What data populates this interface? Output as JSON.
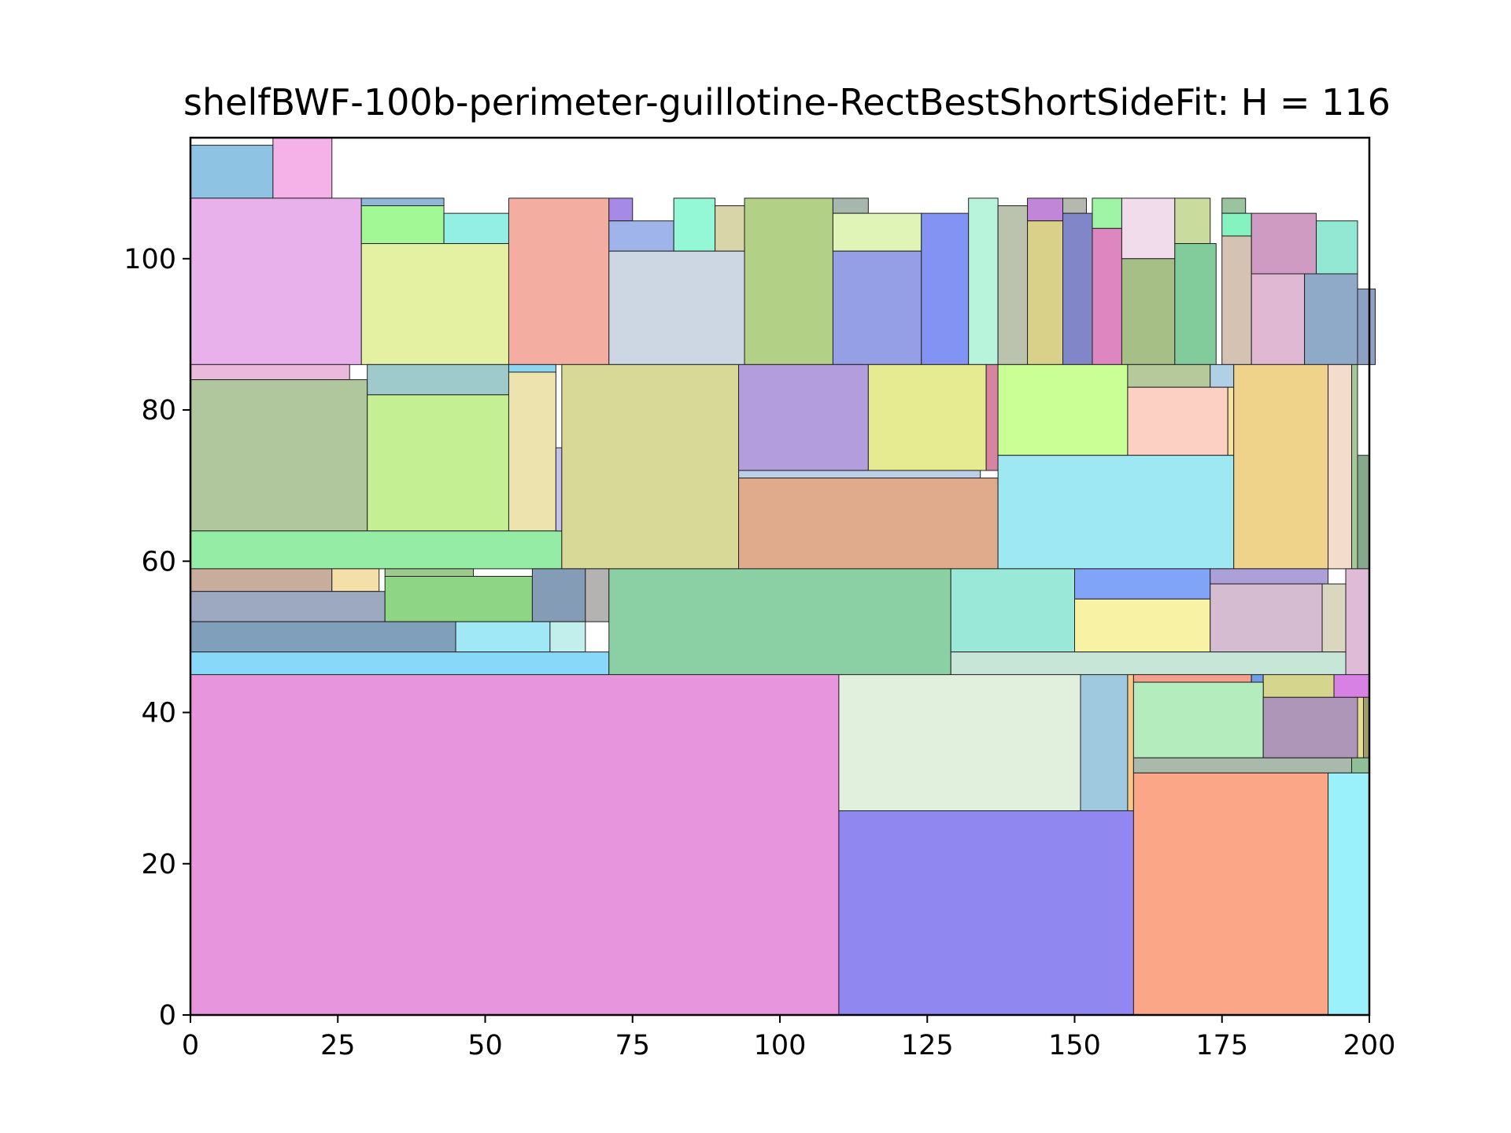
{
  "chart_data": {
    "type": "rectangle-packing",
    "title": "shelfBWF-100b-perimeter-guillotine-RectBestShortSideFit: H = 116",
    "xlabel": "",
    "ylabel": "",
    "xlim": [
      0,
      200
    ],
    "ylim": [
      0,
      116
    ],
    "xticks": [
      0,
      25,
      50,
      75,
      100,
      125,
      150,
      175,
      200
    ],
    "yticks": [
      0,
      20,
      40,
      60,
      80,
      100
    ],
    "grid": false,
    "legend": "none",
    "rectangles": [
      {
        "x": 0,
        "y": 108,
        "w": 14,
        "h": 7,
        "color": "#8fc3e4"
      },
      {
        "x": 14,
        "y": 108,
        "w": 10,
        "h": 8,
        "color": "#f5b2e8"
      },
      {
        "x": 0,
        "y": 86,
        "w": 29,
        "h": 22,
        "color": "#e9b1ec"
      },
      {
        "x": 29,
        "y": 107,
        "w": 14,
        "h": 1,
        "color": "#8fb8d6"
      },
      {
        "x": 29,
        "y": 102,
        "w": 14,
        "h": 5,
        "color": "#a2f895"
      },
      {
        "x": 43,
        "y": 102,
        "w": 11,
        "h": 4,
        "color": "#93efe3"
      },
      {
        "x": 29,
        "y": 86,
        "w": 25,
        "h": 16,
        "color": "#e4f0a2"
      },
      {
        "x": 54,
        "y": 86,
        "w": 17,
        "h": 22,
        "color": "#f4aea1"
      },
      {
        "x": 71,
        "y": 105,
        "w": 4,
        "h": 3,
        "color": "#a68ae8"
      },
      {
        "x": 71,
        "y": 101,
        "w": 11,
        "h": 4,
        "color": "#9fb4ea"
      },
      {
        "x": 82,
        "y": 101,
        "w": 7,
        "h": 7,
        "color": "#94f8d6"
      },
      {
        "x": 89,
        "y": 101,
        "w": 5,
        "h": 6,
        "color": "#d8d5a8"
      },
      {
        "x": 71,
        "y": 86,
        "w": 23,
        "h": 15,
        "color": "#cdd7e3"
      },
      {
        "x": 94,
        "y": 86,
        "w": 15,
        "h": 22,
        "color": "#b3d186"
      },
      {
        "x": 109,
        "y": 106,
        "w": 6,
        "h": 2,
        "color": "#a6b8ae"
      },
      {
        "x": 109,
        "y": 101,
        "w": 15,
        "h": 5,
        "color": "#e1f4b8"
      },
      {
        "x": 109,
        "y": 86,
        "w": 15,
        "h": 15,
        "color": "#949fe6"
      },
      {
        "x": 124,
        "y": 86,
        "w": 8,
        "h": 20,
        "color": "#8293f3"
      },
      {
        "x": 132,
        "y": 86,
        "w": 5,
        "h": 22,
        "color": "#b8f4dc"
      },
      {
        "x": 137,
        "y": 86,
        "w": 5,
        "h": 21,
        "color": "#bbc3ae"
      },
      {
        "x": 142,
        "y": 105,
        "w": 6,
        "h": 3,
        "color": "#c286d8"
      },
      {
        "x": 142,
        "y": 86,
        "w": 6,
        "h": 19,
        "color": "#d9d189"
      },
      {
        "x": 148,
        "y": 106,
        "w": 4,
        "h": 2,
        "color": "#b5b8ae"
      },
      {
        "x": 148,
        "y": 86,
        "w": 5,
        "h": 20,
        "color": "#8186c8"
      },
      {
        "x": 153,
        "y": 104,
        "w": 5,
        "h": 4,
        "color": "#9ff4a6"
      },
      {
        "x": 153,
        "y": 86,
        "w": 5,
        "h": 18,
        "color": "#de86bf"
      },
      {
        "x": 158,
        "y": 100,
        "w": 9,
        "h": 8,
        "color": "#f0dcea"
      },
      {
        "x": 158,
        "y": 86,
        "w": 9,
        "h": 14,
        "color": "#a5bf86"
      },
      {
        "x": 167,
        "y": 102,
        "w": 6,
        "h": 6,
        "color": "#c9dc9d"
      },
      {
        "x": 167,
        "y": 86,
        "w": 7,
        "h": 16,
        "color": "#82cc9c"
      },
      {
        "x": 175,
        "y": 106,
        "w": 4,
        "h": 2,
        "color": "#99c49e"
      },
      {
        "x": 175,
        "y": 103,
        "w": 5,
        "h": 3,
        "color": "#84f3c0"
      },
      {
        "x": 175,
        "y": 86,
        "w": 5,
        "h": 17,
        "color": "#d4c2b2"
      },
      {
        "x": 180,
        "y": 98,
        "w": 11,
        "h": 8,
        "color": "#cf9bc2"
      },
      {
        "x": 180,
        "y": 86,
        "w": 9,
        "h": 12,
        "color": "#e1b8d4"
      },
      {
        "x": 191,
        "y": 98,
        "w": 7,
        "h": 7,
        "color": "#93e8d3"
      },
      {
        "x": 189,
        "y": 86,
        "w": 9,
        "h": 12,
        "color": "#8eaac8"
      },
      {
        "x": 198,
        "y": 86,
        "w": 3,
        "h": 10,
        "color": "#8ea1c4"
      },
      {
        "x": 0,
        "y": 84,
        "w": 27,
        "h": 2,
        "color": "#ebb9dc"
      },
      {
        "x": 0,
        "y": 64,
        "w": 30,
        "h": 20,
        "color": "#b0c69c"
      },
      {
        "x": 30,
        "y": 82,
        "w": 24,
        "h": 4,
        "color": "#9ecacb"
      },
      {
        "x": 30,
        "y": 64,
        "w": 24,
        "h": 18,
        "color": "#c4f093"
      },
      {
        "x": 54,
        "y": 85,
        "w": 8,
        "h": 1,
        "color": "#8ad7ef"
      },
      {
        "x": 54,
        "y": 64,
        "w": 8,
        "h": 21,
        "color": "#ede3ae"
      },
      {
        "x": 0,
        "y": 59,
        "w": 63,
        "h": 5,
        "color": "#95eca4"
      },
      {
        "x": 62,
        "y": 64,
        "w": 1,
        "h": 11,
        "color": "#c2c2ec"
      },
      {
        "x": 63,
        "y": 59,
        "w": 30,
        "h": 27,
        "color": "#d8d996"
      },
      {
        "x": 93,
        "y": 72,
        "w": 22,
        "h": 14,
        "color": "#b39ddc"
      },
      {
        "x": 115,
        "y": 72,
        "w": 20,
        "h": 14,
        "color": "#e6ea90"
      },
      {
        "x": 135,
        "y": 72,
        "w": 2,
        "h": 14,
        "color": "#d8839f"
      },
      {
        "x": 93,
        "y": 71,
        "w": 41,
        "h": 1,
        "color": "#bccde6"
      },
      {
        "x": 93,
        "y": 59,
        "w": 44,
        "h": 12,
        "color": "#dfab8c"
      },
      {
        "x": 137,
        "y": 74,
        "w": 22,
        "h": 12,
        "color": "#caff95"
      },
      {
        "x": 159,
        "y": 83,
        "w": 14,
        "h": 3,
        "color": "#b6c99a"
      },
      {
        "x": 173,
        "y": 83,
        "w": 4,
        "h": 3,
        "color": "#b0d0e6"
      },
      {
        "x": 159,
        "y": 74,
        "w": 17,
        "h": 9,
        "color": "#fcd1c4"
      },
      {
        "x": 176,
        "y": 74,
        "w": 1,
        "h": 9,
        "color": "#f4e4a0"
      },
      {
        "x": 137,
        "y": 59,
        "w": 40,
        "h": 15,
        "color": "#9de8f2"
      },
      {
        "x": 177,
        "y": 59,
        "w": 16,
        "h": 27,
        "color": "#f0d38a"
      },
      {
        "x": 193,
        "y": 59,
        "w": 4,
        "h": 27,
        "color": "#f4dccc"
      },
      {
        "x": 197,
        "y": 59,
        "w": 1,
        "h": 27,
        "color": "#a7c79c"
      },
      {
        "x": 198,
        "y": 59,
        "w": 2,
        "h": 15,
        "color": "#87a98b"
      },
      {
        "x": 0,
        "y": 56,
        "w": 24,
        "h": 3,
        "color": "#c8ac9c"
      },
      {
        "x": 24,
        "y": 56,
        "w": 8,
        "h": 3,
        "color": "#f4dfa8"
      },
      {
        "x": 33,
        "y": 58,
        "w": 15,
        "h": 1,
        "color": "#a0c891"
      },
      {
        "x": 0,
        "y": 52,
        "w": 33,
        "h": 4,
        "color": "#9da8c1"
      },
      {
        "x": 33,
        "y": 52,
        "w": 25,
        "h": 6,
        "color": "#8ed585"
      },
      {
        "x": 58,
        "y": 52,
        "w": 9,
        "h": 7,
        "color": "#849cb5"
      },
      {
        "x": 67,
        "y": 52,
        "w": 4,
        "h": 7,
        "color": "#b5b2b2"
      },
      {
        "x": 0,
        "y": 48,
        "w": 45,
        "h": 4,
        "color": "#7f9fba"
      },
      {
        "x": 45,
        "y": 48,
        "w": 16,
        "h": 4,
        "color": "#a1e8f6"
      },
      {
        "x": 61,
        "y": 48,
        "w": 6,
        "h": 4,
        "color": "#c2eeec"
      },
      {
        "x": 0,
        "y": 45,
        "w": 71,
        "h": 3,
        "color": "#88d8f9"
      },
      {
        "x": 71,
        "y": 45,
        "w": 58,
        "h": 14,
        "color": "#8bcfa5"
      },
      {
        "x": 129,
        "y": 48,
        "w": 21,
        "h": 11,
        "color": "#9ae9d8"
      },
      {
        "x": 150,
        "y": 55,
        "w": 23,
        "h": 4,
        "color": "#80a4f7"
      },
      {
        "x": 173,
        "y": 57,
        "w": 20,
        "h": 2,
        "color": "#aba0d8"
      },
      {
        "x": 150,
        "y": 48,
        "w": 23,
        "h": 7,
        "color": "#f8f2a4"
      },
      {
        "x": 173,
        "y": 48,
        "w": 19,
        "h": 9,
        "color": "#d6bcd0"
      },
      {
        "x": 192,
        "y": 48,
        "w": 4,
        "h": 9,
        "color": "#dad7c1"
      },
      {
        "x": 196,
        "y": 45,
        "w": 4,
        "h": 14,
        "color": "#dfbbd8"
      },
      {
        "x": 129,
        "y": 45,
        "w": 67,
        "h": 3,
        "color": "#c7e6d8"
      },
      {
        "x": 0,
        "y": 0,
        "w": 110,
        "h": 45,
        "color": "#e795dd"
      },
      {
        "x": 110,
        "y": 27,
        "w": 41,
        "h": 18,
        "color": "#e1f0dc"
      },
      {
        "x": 151,
        "y": 27,
        "w": 8,
        "h": 18,
        "color": "#9fc9df"
      },
      {
        "x": 159,
        "y": 27,
        "w": 1,
        "h": 18,
        "color": "#f4c98b"
      },
      {
        "x": 110,
        "y": 0,
        "w": 50,
        "h": 27,
        "color": "#9088f0"
      },
      {
        "x": 160,
        "y": 44,
        "w": 20,
        "h": 1,
        "color": "#f4a08c"
      },
      {
        "x": 180,
        "y": 44,
        "w": 2,
        "h": 1,
        "color": "#6f9fe8"
      },
      {
        "x": 182,
        "y": 42,
        "w": 12,
        "h": 3,
        "color": "#d6d58d"
      },
      {
        "x": 194,
        "y": 42,
        "w": 6,
        "h": 3,
        "color": "#d781e5"
      },
      {
        "x": 160,
        "y": 34,
        "w": 22,
        "h": 10,
        "color": "#b4ecbd"
      },
      {
        "x": 182,
        "y": 34,
        "w": 16,
        "h": 8,
        "color": "#ae96b8"
      },
      {
        "x": 198,
        "y": 34,
        "w": 1,
        "h": 8,
        "color": "#e6dd94"
      },
      {
        "x": 199,
        "y": 34,
        "w": 1,
        "h": 8,
        "color": "#a09c6c"
      },
      {
        "x": 160,
        "y": 32,
        "w": 37,
        "h": 2,
        "color": "#a9b9ac"
      },
      {
        "x": 197,
        "y": 32,
        "w": 3,
        "h": 2,
        "color": "#8fbf95"
      },
      {
        "x": 160,
        "y": 0,
        "w": 33,
        "h": 32,
        "color": "#fca688"
      },
      {
        "x": 193,
        "y": 0,
        "w": 7,
        "h": 32,
        "color": "#9af1fb"
      }
    ]
  }
}
